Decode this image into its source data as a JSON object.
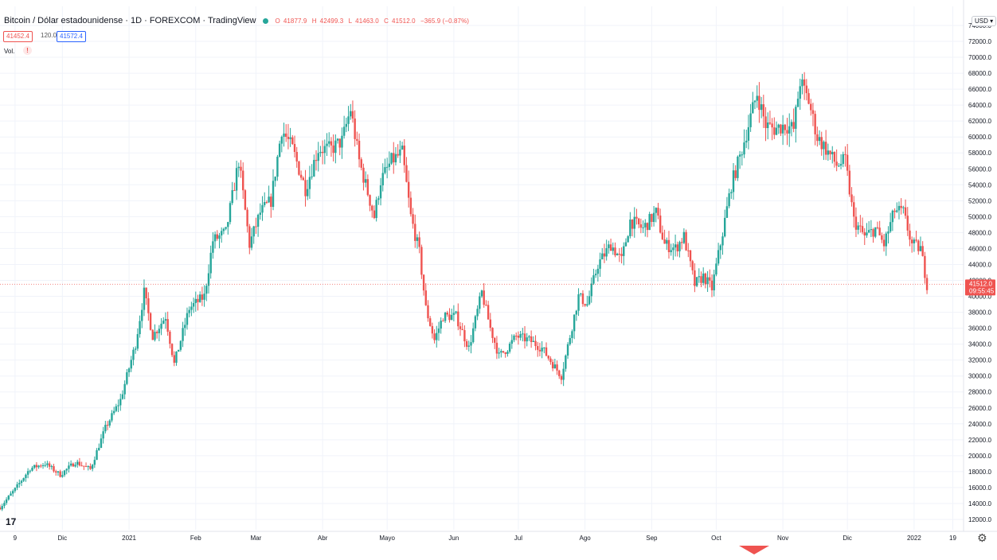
{
  "header": {
    "title": "Bitcoin / Dólar estadounidense · 1D · FOREXCOM · TradingView",
    "ohlc": {
      "o_label": "O",
      "o": "41877.9",
      "h_label": "H",
      "h": "42499.3",
      "l_label": "L",
      "l": "41463.0",
      "c_label": "C",
      "c": "41512.0",
      "change": "−365.9 (−0.87%)"
    },
    "sell_price": "41452.4",
    "spread": "120.0",
    "buy_price": "41572.4",
    "volume_label": "Vol.",
    "warning_icon": "!",
    "currency": "USD",
    "logo": "17",
    "settings_icon": "⚙"
  },
  "colors": {
    "up": "#26a69a",
    "down": "#ef5350",
    "grid": "#f0f3fa",
    "axis_text": "#131722",
    "last_price_line": "#ef5350",
    "scroll_marker": "#ef5350"
  },
  "chart_data": {
    "type": "candlestick",
    "title": "Bitcoin / Dólar estadounidense · 1D · FOREXCOM · TradingView",
    "y_axis": {
      "min": 11000,
      "max": 75000,
      "step": 2000,
      "ticks": [
        "12000.0",
        "14000.0",
        "16000.0",
        "18000.0",
        "20000.0",
        "22000.0",
        "24000.0",
        "26000.0",
        "28000.0",
        "30000.0",
        "32000.0",
        "34000.0",
        "36000.0",
        "38000.0",
        "40000.0",
        "42000.0",
        "44000.0",
        "46000.0",
        "48000.0",
        "50000.0",
        "52000.0",
        "54000.0",
        "56000.0",
        "58000.0",
        "60000.0",
        "62000.0",
        "64000.0",
        "66000.0",
        "68000.0",
        "70000.0",
        "72000.0",
        "74000.0"
      ]
    },
    "x_axis": {
      "labels": [
        {
          "text": "9",
          "date": "2020-11-09"
        },
        {
          "text": "Dic",
          "date": "2020-12-01"
        },
        {
          "text": "2021",
          "date": "2021-01-01"
        },
        {
          "text": "Feb",
          "date": "2021-02-01"
        },
        {
          "text": "Mar",
          "date": "2021-03-01"
        },
        {
          "text": "Abr",
          "date": "2021-04-01"
        },
        {
          "text": "Mayo",
          "date": "2021-05-01"
        },
        {
          "text": "Jun",
          "date": "2021-06-01"
        },
        {
          "text": "Jul",
          "date": "2021-07-01"
        },
        {
          "text": "Ago",
          "date": "2021-08-01"
        },
        {
          "text": "Sep",
          "date": "2021-09-01"
        },
        {
          "text": "Oct",
          "date": "2021-10-01"
        },
        {
          "text": "Nov",
          "date": "2021-11-01"
        },
        {
          "text": "Dic",
          "date": "2021-12-01"
        },
        {
          "text": "2022",
          "date": "2022-01-01"
        },
        {
          "text": "19",
          "date": "2022-01-19"
        }
      ]
    },
    "last_price": {
      "value": 41512.0,
      "label": "41512.0",
      "countdown": "09:55:45"
    },
    "series": [
      {
        "date": "2020-11-02",
        "close": 13500
      },
      {
        "date": "2020-11-09",
        "close": 15800
      },
      {
        "date": "2020-11-16",
        "close": 18400
      },
      {
        "date": "2020-11-23",
        "close": 19000
      },
      {
        "date": "2020-11-30",
        "close": 17600
      },
      {
        "date": "2020-12-07",
        "close": 19200
      },
      {
        "date": "2020-12-14",
        "close": 18300
      },
      {
        "date": "2020-12-21",
        "close": 23500
      },
      {
        "date": "2020-12-28",
        "close": 27000
      },
      {
        "date": "2021-01-04",
        "close": 34000
      },
      {
        "date": "2021-01-08",
        "close": 40500
      },
      {
        "date": "2021-01-12",
        "close": 35000
      },
      {
        "date": "2021-01-18",
        "close": 37500
      },
      {
        "date": "2021-01-22",
        "close": 31500
      },
      {
        "date": "2021-01-29",
        "close": 38500
      },
      {
        "date": "2021-02-05",
        "close": 40000
      },
      {
        "date": "2021-02-09",
        "close": 47000
      },
      {
        "date": "2021-02-15",
        "close": 48000
      },
      {
        "date": "2021-02-21",
        "close": 57000
      },
      {
        "date": "2021-02-26",
        "close": 46500
      },
      {
        "date": "2021-03-03",
        "close": 50500
      },
      {
        "date": "2021-03-08",
        "close": 52000
      },
      {
        "date": "2021-03-13",
        "close": 61000
      },
      {
        "date": "2021-03-18",
        "close": 58500
      },
      {
        "date": "2021-03-24",
        "close": 53500
      },
      {
        "date": "2021-03-30",
        "close": 58500
      },
      {
        "date": "2021-04-05",
        "close": 58500
      },
      {
        "date": "2021-04-10",
        "close": 59500
      },
      {
        "date": "2021-04-14",
        "close": 63500
      },
      {
        "date": "2021-04-18",
        "close": 57000
      },
      {
        "date": "2021-04-25",
        "close": 50000
      },
      {
        "date": "2021-04-28",
        "close": 54500
      },
      {
        "date": "2021-05-03",
        "close": 57000
      },
      {
        "date": "2021-05-08",
        "close": 58000
      },
      {
        "date": "2021-05-12",
        "close": 50000
      },
      {
        "date": "2021-05-16",
        "close": 45500
      },
      {
        "date": "2021-05-19",
        "close": 38500
      },
      {
        "date": "2021-05-23",
        "close": 34500
      },
      {
        "date": "2021-05-27",
        "close": 37500
      },
      {
        "date": "2021-06-02",
        "close": 37500
      },
      {
        "date": "2021-06-08",
        "close": 33500
      },
      {
        "date": "2021-06-14",
        "close": 40500
      },
      {
        "date": "2021-06-18",
        "close": 36000
      },
      {
        "date": "2021-06-22",
        "close": 32500
      },
      {
        "date": "2021-06-26",
        "close": 33500
      },
      {
        "date": "2021-06-30",
        "close": 35000
      },
      {
        "date": "2021-07-06",
        "close": 34500
      },
      {
        "date": "2021-07-12",
        "close": 33500
      },
      {
        "date": "2021-07-17",
        "close": 31500
      },
      {
        "date": "2021-07-21",
        "close": 30000
      },
      {
        "date": "2021-07-25",
        "close": 35000
      },
      {
        "date": "2021-07-29",
        "close": 40000
      },
      {
        "date": "2021-08-02",
        "close": 39000
      },
      {
        "date": "2021-08-07",
        "close": 44000
      },
      {
        "date": "2021-08-13",
        "close": 46500
      },
      {
        "date": "2021-08-18",
        "close": 44500
      },
      {
        "date": "2021-08-22",
        "close": 49500
      },
      {
        "date": "2021-08-28",
        "close": 48500
      },
      {
        "date": "2021-09-03",
        "close": 50500
      },
      {
        "date": "2021-09-07",
        "close": 46500
      },
      {
        "date": "2021-09-12",
        "close": 46000
      },
      {
        "date": "2021-09-16",
        "close": 47500
      },
      {
        "date": "2021-09-21",
        "close": 41500
      },
      {
        "date": "2021-09-25",
        "close": 42500
      },
      {
        "date": "2021-09-29",
        "close": 41000
      },
      {
        "date": "2021-10-04",
        "close": 48000
      },
      {
        "date": "2021-10-08",
        "close": 54000
      },
      {
        "date": "2021-10-12",
        "close": 57500
      },
      {
        "date": "2021-10-16",
        "close": 61500
      },
      {
        "date": "2021-10-20",
        "close": 65500
      },
      {
        "date": "2021-10-24",
        "close": 61500
      },
      {
        "date": "2021-10-28",
        "close": 61000
      },
      {
        "date": "2021-11-02",
        "close": 61500
      },
      {
        "date": "2021-11-06",
        "close": 61000
      },
      {
        "date": "2021-11-09",
        "close": 67000
      },
      {
        "date": "2021-11-13",
        "close": 64500
      },
      {
        "date": "2021-11-17",
        "close": 60000
      },
      {
        "date": "2021-11-21",
        "close": 58500
      },
      {
        "date": "2021-11-26",
        "close": 56500
      },
      {
        "date": "2021-11-30",
        "close": 57000
      },
      {
        "date": "2021-12-04",
        "close": 49500
      },
      {
        "date": "2021-12-09",
        "close": 47500
      },
      {
        "date": "2021-12-14",
        "close": 48500
      },
      {
        "date": "2021-12-18",
        "close": 46500
      },
      {
        "date": "2021-12-23",
        "close": 50800
      },
      {
        "date": "2021-12-27",
        "close": 50500
      },
      {
        "date": "2021-12-31",
        "close": 46500
      },
      {
        "date": "2022-01-04",
        "close": 46000
      },
      {
        "date": "2022-01-07",
        "close": 41500
      }
    ]
  }
}
